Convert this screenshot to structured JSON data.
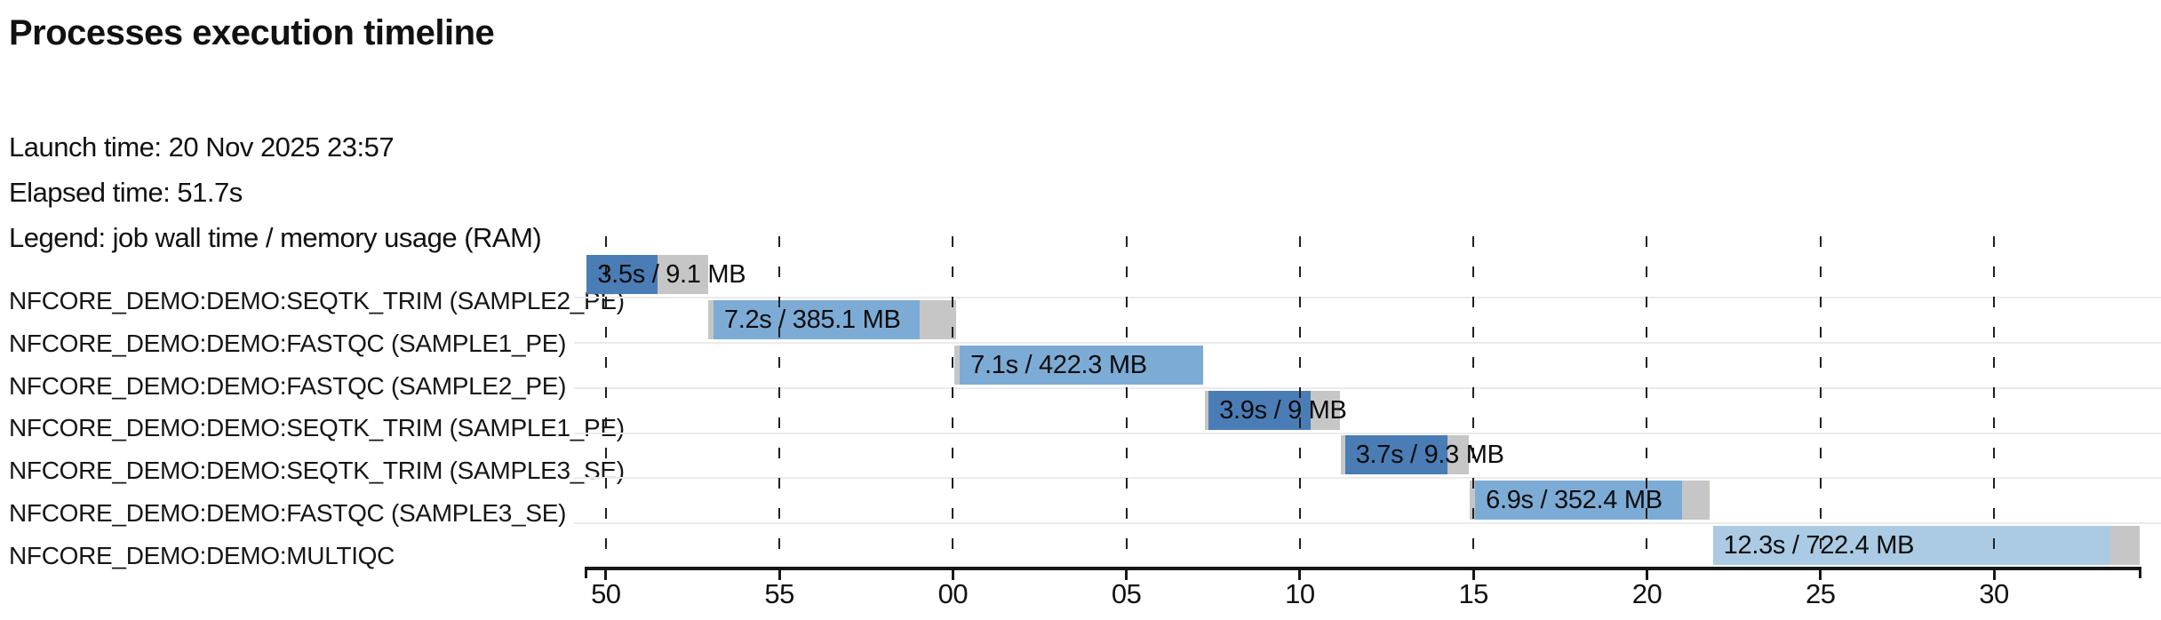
{
  "header": {
    "title": "Processes execution timeline",
    "launch_label": "Launch time: 20 Nov 2025 23:57",
    "elapsed_label": "Elapsed time: 51.7s",
    "legend_label": "Legend: job wall time / memory usage (RAM)"
  },
  "chart_data": {
    "type": "gantt",
    "title": "Processes execution timeline",
    "launch_time": "20 Nov 2025 23:57",
    "elapsed_time": "51.7s",
    "legend": "job wall time / memory usage (RAM)",
    "time_axis": {
      "unit": "seconds (clock seconds within minutes 23:57 - 23:58)",
      "domain_seconds": [
        49.39,
        94.25
      ],
      "ticks": [
        {
          "value": 50,
          "label": "50"
        },
        {
          "value": 55,
          "label": "55"
        },
        {
          "value": 60,
          "label": "00"
        },
        {
          "value": 65,
          "label": "05"
        },
        {
          "value": 70,
          "label": "10"
        },
        {
          "value": 75,
          "label": "15"
        },
        {
          "value": 80,
          "label": "20"
        },
        {
          "value": 85,
          "label": "25"
        },
        {
          "value": 90,
          "label": "30"
        }
      ],
      "grid": "dashed-vertical"
    },
    "colors": {
      "SEQTK_TRIM": "#4a7db5",
      "FASTQC": "#7cacd5",
      "MULTIQC": "#aacbe3",
      "overhead": "#c6c6c6"
    },
    "processes": [
      {
        "name": "NFCORE_DEMO:DEMO:SEQTK_TRIM (SAMPLE2_PE)",
        "bar_label": "3.5s / 9.1 MB",
        "wall_time": "3.5s",
        "memory": "9.1 MB",
        "color": "#4a7db5",
        "segments": [
          {
            "type": "run",
            "start": 49.45,
            "end": 51.5
          },
          {
            "type": "overhead",
            "start": 51.5,
            "end": 52.95
          }
        ]
      },
      {
        "name": "NFCORE_DEMO:DEMO:FASTQC (SAMPLE1_PE)",
        "bar_label": "7.2s / 385.1 MB",
        "wall_time": "7.2s",
        "memory": "385.1 MB",
        "color": "#7cacd5",
        "segments": [
          {
            "type": "overhead",
            "start": 52.95,
            "end": 53.1
          },
          {
            "type": "run",
            "start": 53.1,
            "end": 59.05
          },
          {
            "type": "overhead",
            "start": 59.05,
            "end": 60.1
          }
        ]
      },
      {
        "name": "NFCORE_DEMO:DEMO:FASTQC (SAMPLE2_PE)",
        "bar_label": "7.1s / 422.3 MB",
        "wall_time": "7.1s",
        "memory": "422.3 MB",
        "color": "#7cacd5",
        "segments": [
          {
            "type": "overhead",
            "start": 60.05,
            "end": 60.2
          },
          {
            "type": "run",
            "start": 60.2,
            "end": 67.2
          }
        ]
      },
      {
        "name": "NFCORE_DEMO:DEMO:SEQTK_TRIM (SAMPLE1_PE)",
        "bar_label": "3.9s / 9 MB",
        "wall_time": "3.9s",
        "memory": "9 MB",
        "color": "#4a7db5",
        "segments": [
          {
            "type": "overhead",
            "start": 67.25,
            "end": 67.37
          },
          {
            "type": "run",
            "start": 67.37,
            "end": 70.3
          },
          {
            "type": "overhead",
            "start": 70.3,
            "end": 71.15
          }
        ]
      },
      {
        "name": "NFCORE_DEMO:DEMO:SEQTK_TRIM (SAMPLE3_SE)",
        "bar_label": "3.7s / 9.3 MB",
        "wall_time": "3.7s",
        "memory": "9.3 MB",
        "color": "#4a7db5",
        "segments": [
          {
            "type": "overhead",
            "start": 71.18,
            "end": 71.3
          },
          {
            "type": "run",
            "start": 71.3,
            "end": 74.25
          },
          {
            "type": "overhead",
            "start": 74.25,
            "end": 74.86
          }
        ]
      },
      {
        "name": "NFCORE_DEMO:DEMO:FASTQC (SAMPLE3_SE)",
        "bar_label": "6.9s / 352.4 MB",
        "wall_time": "6.9s",
        "memory": "352.4 MB",
        "color": "#7cacd5",
        "segments": [
          {
            "type": "overhead",
            "start": 74.9,
            "end": 75.05
          },
          {
            "type": "run",
            "start": 75.05,
            "end": 81.0
          },
          {
            "type": "overhead",
            "start": 81.0,
            "end": 81.8
          }
        ]
      },
      {
        "name": "NFCORE_DEMO:DEMO:MULTIQC",
        "bar_label": "12.3s / 722.4 MB",
        "wall_time": "12.3s",
        "memory": "722.4 MB",
        "color": "#aacbe3",
        "segments": [
          {
            "type": "run",
            "start": 81.9,
            "end": 93.35
          },
          {
            "type": "overhead",
            "start": 93.35,
            "end": 94.2
          }
        ]
      }
    ]
  }
}
